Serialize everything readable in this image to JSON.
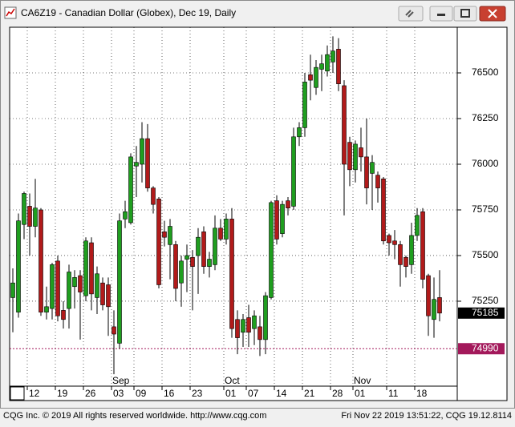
{
  "chart_data": {
    "type": "candlestick",
    "title": "CA6Z19 - Canadian Dollar (Globex), Dec 19, Daily",
    "open": [
      75270,
      75190,
      75670,
      75770,
      75660,
      75750,
      75190,
      75210,
      75470,
      75200,
      75210,
      75330,
      75390,
      75280,
      75570,
      75270,
      75350,
      75340,
      75110,
      75020,
      75700,
      75680,
      75990,
      76000,
      76140,
      75870,
      75810,
      75630,
      75560,
      75560,
      75350,
      75480,
      75490,
      75500,
      75630,
      75440,
      75450,
      75650,
      75590,
      75700,
      75150,
      75080,
      75160,
      75100,
      75110,
      75040,
      75270,
      75800,
      75620,
      75800,
      75770,
      76150,
      76200,
      76490,
      76420,
      76520,
      76510,
      76560,
      76630,
      76430,
      76120,
      75970,
      76090,
      76040,
      75950,
      75940,
      75920,
      75610,
      75580,
      75560,
      75490,
      75450,
      75610,
      75740,
      75390,
      75150,
      75270
    ],
    "high": [
      75430,
      75730,
      75850,
      75840,
      75920,
      75760,
      75330,
      75460,
      75500,
      75250,
      75450,
      75420,
      75420,
      75600,
      75600,
      75440,
      75380,
      75380,
      75200,
      75730,
      75800,
      76060,
      76100,
      76230,
      76220,
      75880,
      75820,
      75690,
      75700,
      75580,
      75500,
      75560,
      75530,
      75650,
      75660,
      75520,
      75720,
      75700,
      75730,
      75760,
      75200,
      75180,
      75230,
      75200,
      75170,
      75300,
      75800,
      75830,
      75800,
      75820,
      76200,
      76230,
      76500,
      76600,
      76570,
      76600,
      76650,
      76700,
      76690,
      76460,
      76150,
      76130,
      76200,
      76250,
      76050,
      75960,
      75930,
      75620,
      75640,
      75580,
      75500,
      75680,
      75760,
      75760,
      75400,
      75380,
      75420
    ],
    "low": [
      75080,
      75160,
      75590,
      75500,
      75600,
      75170,
      75150,
      75150,
      75140,
      75100,
      75100,
      75210,
      75040,
      75250,
      75200,
      75180,
      75200,
      75060,
      74850,
      74990,
      75650,
      75670,
      75820,
      75900,
      75850,
      75730,
      75320,
      75550,
      75370,
      75250,
      75220,
      75300,
      75200,
      75290,
      75400,
      75380,
      75420,
      75580,
      75560,
      75050,
      74960,
      75000,
      75000,
      75010,
      74950,
      74960,
      75260,
      75560,
      75600,
      75720,
      75750,
      76100,
      76150,
      76350,
      76380,
      76400,
      76480,
      76500,
      76400,
      75720,
      75880,
      75900,
      75960,
      75780,
      75750,
      75790,
      75560,
      75500,
      75480,
      75330,
      75380,
      75400,
      75580,
      75320,
      75060,
      75050,
      75140
    ],
    "close": [
      75350,
      75690,
      75840,
      75660,
      75760,
      75190,
      75220,
      75450,
      75170,
      75150,
      75410,
      75380,
      75300,
      75580,
      75290,
      75400,
      75230,
      75220,
      75070,
      75690,
      75740,
      76040,
      76010,
      76140,
      75870,
      75780,
      75340,
      75600,
      75660,
      75320,
      75470,
      75500,
      75440,
      75600,
      75440,
      75480,
      75650,
      75590,
      75700,
      75100,
      75050,
      75150,
      75080,
      75170,
      75040,
      75280,
      75790,
      75590,
      75780,
      75760,
      76150,
      76200,
      76450,
      76460,
      76530,
      76550,
      76600,
      76620,
      76440,
      76000,
      75970,
      76110,
      76040,
      75870,
      76010,
      75870,
      75580,
      75570,
      75560,
      75450,
      75440,
      75610,
      75720,
      75370,
      75170,
      75260,
      75185
    ],
    "up_color": "#1f9e1f",
    "down_color": "#b11a1a",
    "ylim": [
      74785,
      76750
    ],
    "yticks": [
      75250,
      75500,
      75750,
      76000,
      76250,
      76500
    ],
    "xticks": [
      {
        "value": 3,
        "label": "12"
      },
      {
        "value": 8,
        "label": "19"
      },
      {
        "value": 13,
        "label": "26"
      },
      {
        "value": 18,
        "label": "03"
      },
      {
        "value": 22,
        "label": "09"
      },
      {
        "value": 27,
        "label": "16"
      },
      {
        "value": 32,
        "label": "23"
      },
      {
        "value": 38,
        "label": "01"
      },
      {
        "value": 42,
        "label": "07"
      },
      {
        "value": 47,
        "label": "14"
      },
      {
        "value": 52,
        "label": "21"
      },
      {
        "value": 57,
        "label": "28"
      },
      {
        "value": 61,
        "label": "01"
      },
      {
        "value": 67,
        "label": "11"
      },
      {
        "value": 72,
        "label": "18"
      }
    ],
    "month_labels": [
      {
        "value": 18,
        "label": "Sep"
      },
      {
        "value": 38,
        "label": "Oct"
      },
      {
        "value": 61,
        "label": "Nov"
      }
    ],
    "last_price": 75185,
    "reference_line": {
      "value": 74990,
      "color": "#a3195b"
    },
    "grid": true,
    "footer_left": "CQG Inc. © 2019 All rights reserved worldwide. http://www.cqg.com",
    "footer_right": "Fri Nov 22 2019 13:51:22, CQG 19.12.8114"
  }
}
